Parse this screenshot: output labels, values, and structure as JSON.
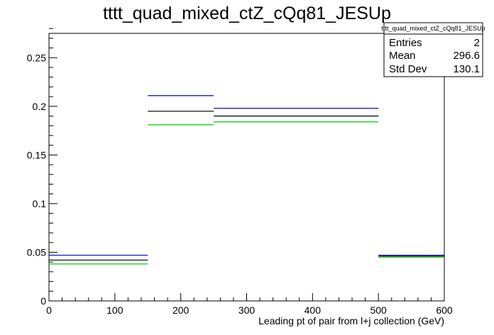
{
  "title": "tttt_quad_mixed_ctZ_cQq81_JESUp",
  "stats_box": {
    "name": "tttt_quad_mixed_ctZ_cQq81_JESUp",
    "rows": [
      {
        "label": "Entries",
        "value": "2"
      },
      {
        "label": "Mean",
        "value": "296.6"
      },
      {
        "label": "Std Dev",
        "value": "130.1"
      }
    ]
  },
  "chart_data": {
    "type": "histogram",
    "xlabel": "Leading pt of pair from l+j collection (GeV)",
    "ylabel": "",
    "xlim": [
      0,
      600
    ],
    "ylim": [
      0,
      0.275
    ],
    "x_ticks": [
      0,
      100,
      200,
      300,
      400,
      500,
      600
    ],
    "y_ticks": [
      0,
      0.05,
      0.1,
      0.15,
      0.2,
      0.25
    ],
    "x_tick_labels": [
      "0",
      "100",
      "200",
      "300",
      "400",
      "500",
      "600"
    ],
    "y_tick_labels": [
      "0",
      "0.05",
      "0.1",
      "0.15",
      "0.2",
      "0.25"
    ],
    "bin_edges": [
      0,
      150,
      250,
      500,
      600
    ],
    "series": [
      {
        "color": "#0000cc",
        "values": [
          0.047,
          0.211,
          0.198,
          0.047
        ]
      },
      {
        "color": "#000000",
        "values": [
          0.042,
          0.195,
          0.19,
          0.046
        ]
      },
      {
        "color": "#00cc00",
        "values": [
          0.038,
          0.181,
          0.184,
          0.045
        ]
      }
    ],
    "grid": false
  }
}
